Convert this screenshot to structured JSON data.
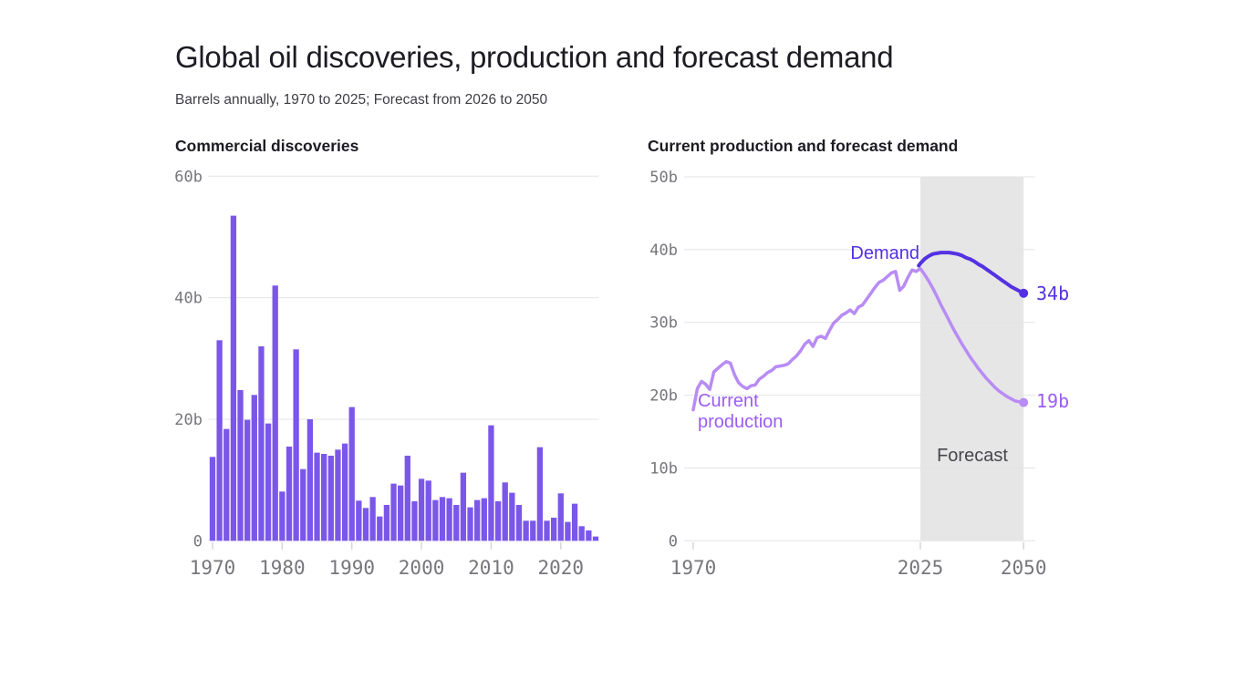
{
  "header": {
    "title": "Global oil discoveries, production and forecast demand",
    "subtitle": "Barrels annually, 1970 to 2025; Forecast from 2026 to 2050"
  },
  "colors": {
    "bar": "#7b57e9",
    "production_line": "#b88cf4",
    "production_label": "#9b5cf3",
    "demand_line": "#5431e2",
    "forecast_band": "#e6e6e6",
    "forecast_text": "#46464c",
    "gridline": "#e4e4e7",
    "tick": "#d6d6da",
    "axis_text": "#76767c"
  },
  "annotations": {
    "demand_label": "Demand",
    "production_label": "Current production",
    "forecast_label": "Forecast",
    "demand_end_label": "34b",
    "production_end_label": "19b"
  },
  "chart_data": [
    {
      "type": "bar",
      "title": "Commercial discoveries",
      "unit": "billion barrels per year",
      "ylim": [
        0,
        60
      ],
      "yticks": [
        {
          "value": 60,
          "label": "60b"
        },
        {
          "value": 40,
          "label": "40b"
        },
        {
          "value": 20,
          "label": "20b"
        },
        {
          "value": 0,
          "label": "0"
        }
      ],
      "xticks": [
        {
          "value": 1970,
          "label": "1970"
        },
        {
          "value": 1980,
          "label": "1980"
        },
        {
          "value": 1990,
          "label": "1990"
        },
        {
          "value": 2000,
          "label": "2000"
        },
        {
          "value": 2010,
          "label": "2010"
        },
        {
          "value": 2020,
          "label": "2020"
        }
      ],
      "categories": [
        1970,
        1971,
        1972,
        1973,
        1974,
        1975,
        1976,
        1977,
        1978,
        1979,
        1980,
        1981,
        1982,
        1983,
        1984,
        1985,
        1986,
        1987,
        1988,
        1989,
        1990,
        1991,
        1992,
        1993,
        1994,
        1995,
        1996,
        1997,
        1998,
        1999,
        2000,
        2001,
        2002,
        2003,
        2004,
        2005,
        2006,
        2007,
        2008,
        2009,
        2010,
        2011,
        2012,
        2013,
        2014,
        2015,
        2016,
        2017,
        2018,
        2019,
        2020,
        2021,
        2022,
        2023,
        2024,
        2025
      ],
      "values": [
        13.8,
        33,
        18.4,
        53.5,
        24.8,
        19.9,
        24,
        32,
        19.3,
        42,
        8.1,
        15.5,
        31.5,
        11.8,
        20,
        14.5,
        14.3,
        14,
        15,
        16,
        22,
        6.6,
        5.4,
        7.2,
        4,
        5.9,
        9.4,
        9.1,
        14,
        6.5,
        10.2,
        9.9,
        6.7,
        7.2,
        7,
        5.9,
        11.2,
        5.5,
        6.7,
        7,
        19,
        6.5,
        9.6,
        7.9,
        5.9,
        3.3,
        3.3,
        15.4,
        3.3,
        3.8,
        7.8,
        3.1,
        6.1,
        2.4,
        1.7,
        0.7
      ]
    },
    {
      "type": "line",
      "title": "Current production and forecast demand",
      "unit": "billion barrels per year",
      "xlim": [
        1970,
        2050
      ],
      "ylim": [
        0,
        50
      ],
      "yticks": [
        {
          "value": 50,
          "label": "50b"
        },
        {
          "value": 40,
          "label": "40b"
        },
        {
          "value": 30,
          "label": "30b"
        },
        {
          "value": 20,
          "label": "20b"
        },
        {
          "value": 10,
          "label": "10b"
        },
        {
          "value": 0,
          "label": "0"
        }
      ],
      "xticks": [
        {
          "value": 1970,
          "label": "1970"
        },
        {
          "value": 2025,
          "label": "2025"
        },
        {
          "value": 2050,
          "label": "2050"
        }
      ],
      "forecast_band": {
        "from": 2025,
        "to": 2050,
        "label": "Forecast"
      },
      "series": [
        {
          "name": "Current production",
          "end_value_label": "19b",
          "end_point": [
            2050,
            19
          ],
          "points": [
            [
              1970,
              18.0
            ],
            [
              1971,
              20.9
            ],
            [
              1972,
              21.9
            ],
            [
              1973,
              21.5
            ],
            [
              1974,
              20.8
            ],
            [
              1975,
              23.2
            ],
            [
              1976,
              23.7
            ],
            [
              1977,
              24.2
            ],
            [
              1978,
              24.6
            ],
            [
              1979,
              24.4
            ],
            [
              1980,
              22.8
            ],
            [
              1981,
              21.7
            ],
            [
              1982,
              21.2
            ],
            [
              1983,
              20.9
            ],
            [
              1984,
              21.3
            ],
            [
              1985,
              21.4
            ],
            [
              1986,
              22.2
            ],
            [
              1987,
              22.6
            ],
            [
              1988,
              23.1
            ],
            [
              1989,
              23.4
            ],
            [
              1990,
              23.9
            ],
            [
              1991,
              24.0
            ],
            [
              1992,
              24.1
            ],
            [
              1993,
              24.3
            ],
            [
              1994,
              24.9
            ],
            [
              1995,
              25.4
            ],
            [
              1996,
              26.1
            ],
            [
              1997,
              27.0
            ],
            [
              1998,
              27.5
            ],
            [
              1999,
              26.7
            ],
            [
              2000,
              27.9
            ],
            [
              2001,
              28.1
            ],
            [
              2002,
              27.8
            ],
            [
              2003,
              28.9
            ],
            [
              2004,
              29.9
            ],
            [
              2005,
              30.4
            ],
            [
              2006,
              31.0
            ],
            [
              2007,
              31.3
            ],
            [
              2008,
              31.7
            ],
            [
              2009,
              31.2
            ],
            [
              2010,
              32.1
            ],
            [
              2011,
              32.4
            ],
            [
              2012,
              33.2
            ],
            [
              2013,
              34.0
            ],
            [
              2014,
              34.8
            ],
            [
              2015,
              35.5
            ],
            [
              2016,
              35.8
            ],
            [
              2017,
              36.3
            ],
            [
              2018,
              36.8
            ],
            [
              2019,
              37.0
            ],
            [
              2020,
              34.4
            ],
            [
              2021,
              35.0
            ],
            [
              2022,
              36.2
            ],
            [
              2023,
              37.2
            ],
            [
              2024,
              37.0
            ],
            [
              2025,
              37.4
            ],
            [
              2026,
              36.6
            ],
            [
              2027,
              35.7
            ],
            [
              2028,
              34.7
            ],
            [
              2029,
              33.6
            ],
            [
              2030,
              32.4
            ],
            [
              2031,
              31.3
            ],
            [
              2032,
              30.2
            ],
            [
              2033,
              29.1
            ],
            [
              2034,
              28.1
            ],
            [
              2035,
              27.1
            ],
            [
              2036,
              26.2
            ],
            [
              2037,
              25.3
            ],
            [
              2038,
              24.5
            ],
            [
              2039,
              23.7
            ],
            [
              2040,
              23.0
            ],
            [
              2041,
              22.3
            ],
            [
              2042,
              21.7
            ],
            [
              2043,
              21.1
            ],
            [
              2044,
              20.6
            ],
            [
              2045,
              20.2
            ],
            [
              2046,
              19.8
            ],
            [
              2047,
              19.5
            ],
            [
              2048,
              19.2
            ],
            [
              2049,
              19.1
            ],
            [
              2050,
              19.0
            ]
          ]
        },
        {
          "name": "Demand",
          "end_value_label": "34b",
          "end_point": [
            2050,
            34
          ],
          "points": [
            [
              2024.6,
              37.8
            ],
            [
              2025,
              38.1
            ],
            [
              2026,
              38.7
            ],
            [
              2027,
              39.1
            ],
            [
              2028,
              39.4
            ],
            [
              2029,
              39.5
            ],
            [
              2030,
              39.6
            ],
            [
              2031,
              39.6
            ],
            [
              2032,
              39.6
            ],
            [
              2033,
              39.5
            ],
            [
              2034,
              39.4
            ],
            [
              2035,
              39.2
            ],
            [
              2036,
              38.9
            ],
            [
              2037,
              38.7
            ],
            [
              2038,
              38.4
            ],
            [
              2039,
              38.0
            ],
            [
              2040,
              37.7
            ],
            [
              2041,
              37.3
            ],
            [
              2042,
              36.9
            ],
            [
              2043,
              36.5
            ],
            [
              2044,
              36.1
            ],
            [
              2045,
              35.7
            ],
            [
              2046,
              35.3
            ],
            [
              2047,
              34.9
            ],
            [
              2048,
              34.6
            ],
            [
              2049,
              34.3
            ],
            [
              2050,
              34.0
            ]
          ]
        }
      ]
    }
  ]
}
